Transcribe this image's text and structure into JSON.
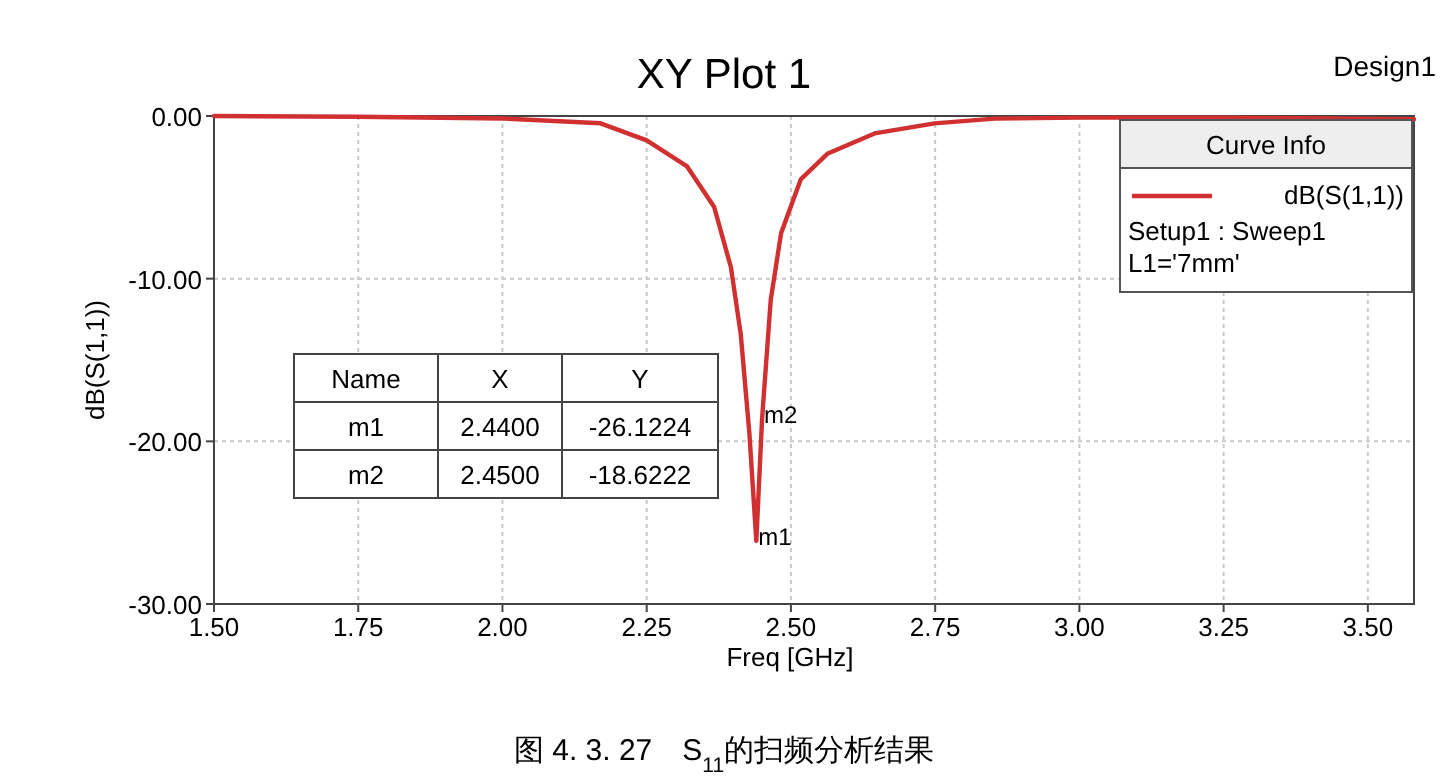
{
  "chart_data": {
    "type": "line",
    "title": "XY Plot 1",
    "xlabel": "Freq [GHz]",
    "ylabel": "dB(S(1,1))",
    "legend_title": "Curve Info",
    "legend": "top right",
    "grid": true,
    "marker": "none",
    "line_style": "solid",
    "xlim": [
      1.5,
      3.58
    ],
    "ylim": [
      -30,
      0
    ],
    "xticks": [
      {
        "value": 1.5,
        "label": "1.50"
      },
      {
        "value": 1.75,
        "label": "1.75"
      },
      {
        "value": 2.0,
        "label": "2.00"
      },
      {
        "value": 2.25,
        "label": "2.25"
      },
      {
        "value": 2.5,
        "label": "2.50"
      },
      {
        "value": 2.75,
        "label": "2.75"
      },
      {
        "value": 3.0,
        "label": "3.00"
      },
      {
        "value": 3.25,
        "label": "3.25"
      },
      {
        "value": 3.5,
        "label": "3.50"
      }
    ],
    "yticks": [
      {
        "value": -30,
        "label": "-30.00"
      },
      {
        "value": -20,
        "label": "-20.00"
      },
      {
        "value": -10,
        "label": "-10.00"
      },
      {
        "value": 0,
        "label": "0.00"
      }
    ],
    "series": [
      {
        "name": "dB(S(1,1))",
        "color": "#d03030",
        "x": [
          1.5,
          1.75,
          2.0,
          2.17,
          2.25,
          2.32,
          2.367,
          2.396,
          2.413,
          2.428,
          2.44,
          2.45,
          2.465,
          2.483,
          2.517,
          2.564,
          2.645,
          2.749,
          2.853,
          3.0,
          3.25,
          3.58
        ],
        "values": [
          0,
          -0.05,
          -0.15,
          -0.45,
          -1.5,
          -3.1,
          -5.6,
          -9.3,
          -13.4,
          -19.5,
          -26.1224,
          -18.6222,
          -11.3,
          -7.2,
          -3.9,
          -2.3,
          -1.07,
          -0.45,
          -0.16,
          -0.1,
          -0.1,
          -0.2
        ]
      }
    ],
    "annotations": [
      "Design1",
      "Setup1 : Sweep1",
      "L1='7mm'",
      "Name",
      "X",
      "Y",
      "m1",
      "2.4400",
      "-26.1224",
      "m2",
      "2.4500",
      "-18.6222",
      {
        "text": "m1",
        "x": 2.44,
        "y": -26.1224
      },
      {
        "text": "m2",
        "x": 2.45,
        "y": -18.6222
      },
      "图 4. 3. 27　S$_{11}$的扫频分析结果"
    ]
  }
}
